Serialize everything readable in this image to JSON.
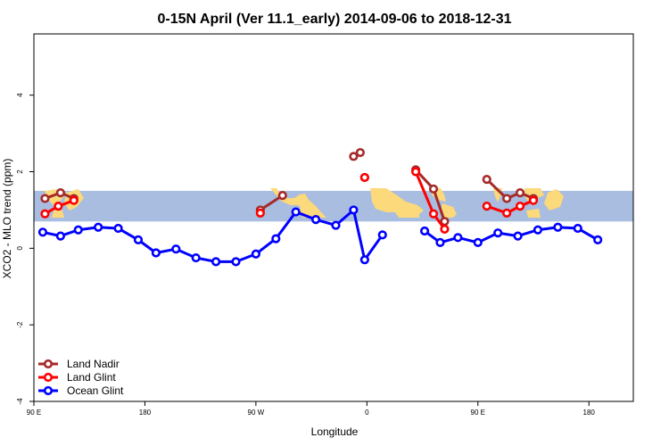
{
  "colors": {
    "land_nadir": "#a52a2a",
    "land_glint": "#ff0000",
    "ocean_glint": "#0000ff",
    "band": "#a9bde0",
    "land_mask": "#fcd97a"
  },
  "chart_data": {
    "type": "line",
    "title": "0-15N April (Ver 11.1_early)   2014-09-06 to 2018-12-31",
    "xlabel": "Longitude",
    "ylabel": "XCO2 - MLO trend (ppm)",
    "xlim": [
      -90,
      180
    ],
    "ylim": [
      -4,
      5.6
    ],
    "xticks": [
      {
        "value": -90,
        "label": "90 E"
      },
      {
        "value": -40,
        "label": "180"
      },
      {
        "value": 10,
        "label": "90 W"
      },
      {
        "value": 60,
        "label": "0"
      },
      {
        "value": 110,
        "label": "90 E"
      },
      {
        "value": 160,
        "label": "180"
      }
    ],
    "yticks": [
      {
        "value": -4,
        "label": "-4"
      },
      {
        "value": -2,
        "label": "-2"
      },
      {
        "value": 0,
        "label": "0"
      },
      {
        "value": 2,
        "label": "2"
      },
      {
        "value": 4,
        "label": "4"
      }
    ],
    "band": [
      0.7,
      1.5
    ],
    "grid": false,
    "legend_position": "bottom-left",
    "series": [
      {
        "name": "Land Nadir",
        "color_key": "land_nadir",
        "segments": [
          [
            [
              -85,
              1.3
            ],
            [
              -78,
              1.45
            ],
            [
              -72,
              1.3
            ]
          ],
          [
            [
              12,
              1.0
            ],
            [
              22,
              1.38
            ]
          ],
          [
            [
              54,
              2.4
            ],
            [
              57,
              2.5
            ]
          ],
          [
            [
              82,
              2.05
            ],
            [
              90,
              1.55
            ],
            [
              95,
              0.7
            ]
          ],
          [
            [
              114,
              1.8
            ],
            [
              123,
              1.3
            ],
            [
              129,
              1.45
            ],
            [
              135,
              1.3
            ]
          ]
        ],
        "points": [
          [
            59,
            1.85
          ]
        ]
      },
      {
        "name": "Land Glint",
        "color_key": "land_glint",
        "segments": [
          [
            [
              -85,
              0.9
            ],
            [
              -79,
              1.1
            ],
            [
              -72,
              1.25
            ]
          ],
          [
            [
              82,
              2.0
            ],
            [
              90,
              0.9
            ],
            [
              95,
              0.5
            ]
          ],
          [
            [
              114,
              1.1
            ],
            [
              123,
              0.92
            ],
            [
              129,
              1.1
            ],
            [
              135,
              1.25
            ]
          ]
        ],
        "points": [
          [
            12,
            0.92
          ],
          [
            59,
            1.85
          ]
        ]
      },
      {
        "name": "Ocean Glint",
        "color_key": "ocean_glint",
        "segments": [
          [
            [
              -86,
              0.42
            ],
            [
              -78,
              0.32
            ],
            [
              -70,
              0.48
            ],
            [
              -61,
              0.55
            ],
            [
              -52,
              0.52
            ],
            [
              -43,
              0.22
            ],
            [
              -35,
              -0.12
            ],
            [
              -26,
              -0.02
            ],
            [
              -17,
              -0.25
            ],
            [
              -8,
              -0.35
            ],
            [
              1,
              -0.35
            ],
            [
              10,
              -0.15
            ],
            [
              19,
              0.25
            ],
            [
              28,
              0.95
            ],
            [
              37,
              0.75
            ],
            [
              46,
              0.6
            ],
            [
              54,
              1.0
            ],
            [
              59,
              -0.3
            ],
            [
              67,
              0.35
            ]
          ],
          [
            [
              86,
              0.45
            ],
            [
              93,
              0.15
            ],
            [
              101,
              0.28
            ],
            [
              110,
              0.15
            ],
            [
              119,
              0.4
            ],
            [
              128,
              0.32
            ],
            [
              137,
              0.48
            ],
            [
              146,
              0.55
            ],
            [
              155,
              0.52
            ],
            [
              164,
              0.22
            ]
          ]
        ],
        "points": []
      }
    ]
  }
}
